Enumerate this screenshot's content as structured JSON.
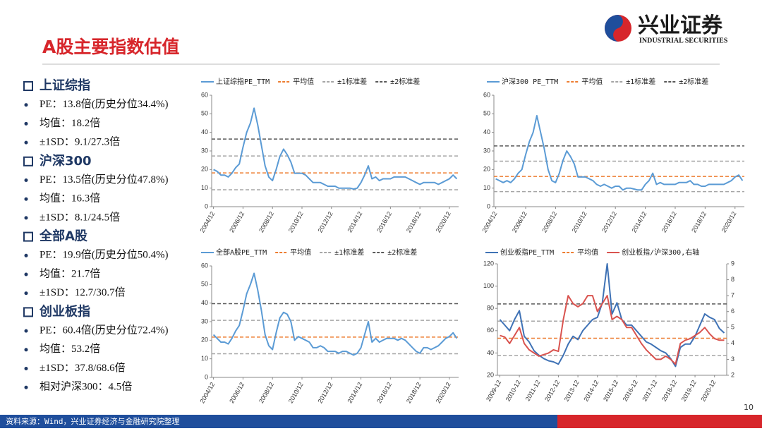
{
  "header": {
    "title": "A股主要指数估值",
    "logo": "兴业证券",
    "logo_sub": "INDUSTRIAL SECURITIES"
  },
  "sections": [
    {
      "title": "上证综指",
      "items": [
        "PE：13.8倍(历史分位34.4%)",
        "均值：18.2倍",
        "±1SD：9.1/27.3倍"
      ]
    },
    {
      "title": "沪深300",
      "items": [
        "PE：13.5倍(历史分位47.8%)",
        "均值：16.3倍",
        "±1SD：8.1/24.5倍"
      ]
    },
    {
      "title": "全部A股",
      "items": [
        "PE：19.9倍(历史分位50.4%)",
        "均值：21.7倍",
        "±1SD：12.7/30.7倍"
      ]
    },
    {
      "title": "创业板指",
      "items": [
        "PE：60.4倍(历史分位72.4%)",
        "均值：53.2倍",
        "±1SD：37.8/68.6倍",
        "相对沪深300：4.5倍"
      ]
    }
  ],
  "chart_data": [
    {
      "type": "line",
      "categories": [
        "2004/12",
        null,
        null,
        null,
        null,
        null,
        null,
        null,
        "2006/12",
        null,
        null,
        null,
        null,
        null,
        null,
        null,
        "2008/12",
        null,
        null,
        null,
        null,
        null,
        null,
        null,
        "2010/12",
        null,
        null,
        null,
        null,
        null,
        null,
        null,
        "2012/12",
        null,
        null,
        null,
        null,
        null,
        null,
        null,
        "2014/12",
        null,
        null,
        null,
        null,
        null,
        null,
        null,
        "2016/12",
        null,
        null,
        null,
        null,
        null,
        null,
        null,
        "2018/12",
        null,
        null,
        null,
        null,
        null,
        null,
        null,
        "2020/12",
        null,
        null
      ],
      "series": [
        {
          "name": "上证综指PE_TTM",
          "color": "#5b9bd5",
          "values": [
            20,
            19,
            17,
            17,
            16,
            18,
            21,
            23,
            32,
            40,
            45,
            53,
            44,
            33,
            22,
            16,
            14,
            20,
            27,
            31,
            28,
            24,
            18,
            18,
            18,
            17,
            15,
            13,
            13,
            13,
            12,
            11,
            11,
            11,
            10,
            10,
            10,
            10,
            9.5,
            10,
            13,
            17,
            22,
            15,
            16,
            14,
            15,
            15,
            15,
            16,
            16,
            16,
            16,
            15,
            14,
            13,
            12,
            13,
            13,
            13,
            13,
            12,
            13,
            14,
            15,
            17,
            15
          ]
        }
      ],
      "hlines": [
        {
          "name": "平均值",
          "color": "#ed7d31",
          "values": [
            18.2
          ]
        },
        {
          "name": "±1标准差",
          "color": "#a6a6a6",
          "values": [
            9.1,
            27.3
          ]
        },
        {
          "name": "±2标准差",
          "color": "#595959",
          "values": [
            36.4
          ]
        }
      ],
      "ylim": [
        0,
        60
      ],
      "yticks": [
        0,
        10,
        20,
        30,
        40,
        50,
        60
      ]
    },
    {
      "type": "line",
      "categories": [
        "2004/12",
        null,
        null,
        null,
        null,
        null,
        null,
        null,
        "2006/12",
        null,
        null,
        null,
        null,
        null,
        null,
        null,
        "2008/12",
        null,
        null,
        null,
        null,
        null,
        null,
        null,
        "2010/12",
        null,
        null,
        null,
        null,
        null,
        null,
        null,
        "2012/12",
        null,
        null,
        null,
        null,
        null,
        null,
        null,
        "2014/12",
        null,
        null,
        null,
        null,
        null,
        null,
        null,
        "2016/12",
        null,
        null,
        null,
        null,
        null,
        null,
        null,
        "2018/12",
        null,
        null,
        null,
        null,
        null,
        null,
        null,
        "2020/12",
        null,
        null
      ],
      "series": [
        {
          "name": "沪深300 PE_TTM",
          "color": "#5b9bd5",
          "values": [
            15,
            14,
            13,
            14,
            13,
            15,
            18,
            20,
            28,
            35,
            40,
            49,
            40,
            31,
            20,
            14,
            13,
            18,
            25,
            30,
            27,
            23,
            16,
            16,
            16,
            15,
            14,
            12,
            11,
            12,
            11,
            10,
            11,
            11,
            9,
            10,
            10,
            9.5,
            9,
            9,
            12,
            14,
            18,
            12,
            13,
            12,
            12,
            12,
            12,
            13,
            13,
            13,
            14,
            12,
            12,
            11,
            11,
            12,
            12,
            12,
            12,
            12,
            13,
            14,
            16,
            17,
            14
          ]
        }
      ],
      "hlines": [
        {
          "name": "平均值",
          "color": "#ed7d31",
          "values": [
            16.3
          ]
        },
        {
          "name": "±1标准差",
          "color": "#a6a6a6",
          "values": [
            8.1,
            24.5
          ]
        },
        {
          "name": "±2标准差",
          "color": "#595959",
          "values": [
            32.7
          ]
        }
      ],
      "ylim": [
        0,
        60
      ],
      "yticks": [
        0,
        10,
        20,
        30,
        40,
        50,
        60
      ]
    },
    {
      "type": "line",
      "categories": [
        "2004/12",
        null,
        null,
        null,
        null,
        null,
        null,
        null,
        "2006/12",
        null,
        null,
        null,
        null,
        null,
        null,
        null,
        "2008/12",
        null,
        null,
        null,
        null,
        null,
        null,
        null,
        "2010/12",
        null,
        null,
        null,
        null,
        null,
        null,
        null,
        "2012/12",
        null,
        null,
        null,
        null,
        null,
        null,
        null,
        "2014/12",
        null,
        null,
        null,
        null,
        null,
        null,
        null,
        "2016/12",
        null,
        null,
        null,
        null,
        null,
        null,
        null,
        "2018/12",
        null,
        null,
        null,
        null,
        null,
        null,
        null,
        "2020/12",
        null,
        null
      ],
      "series": [
        {
          "name": "全部A股PE_TTM",
          "color": "#5b9bd5",
          "values": [
            23,
            21,
            19,
            19,
            18,
            21,
            25,
            28,
            36,
            45,
            50,
            56,
            47,
            36,
            23,
            17,
            15,
            24,
            32,
            35,
            34,
            30,
            20,
            22,
            21,
            20,
            19,
            16,
            16,
            17,
            16,
            14,
            14,
            14,
            13,
            14,
            14,
            13,
            12,
            13,
            16,
            23,
            30,
            19,
            21,
            19,
            20,
            21,
            21,
            21,
            20,
            21,
            20,
            18,
            16,
            14,
            13,
            16,
            16,
            15,
            16,
            17,
            19,
            21,
            22,
            24,
            21
          ]
        }
      ],
      "hlines": [
        {
          "name": "平均值",
          "color": "#ed7d31",
          "values": [
            21.7
          ]
        },
        {
          "name": "±1标准差",
          "color": "#a6a6a6",
          "values": [
            12.7,
            30.7
          ]
        },
        {
          "name": "±2标准差",
          "color": "#595959",
          "values": [
            39.7
          ]
        }
      ],
      "ylim": [
        0,
        60
      ],
      "yticks": [
        0,
        10,
        20,
        30,
        40,
        50,
        60
      ]
    },
    {
      "type": "line",
      "categories": [
        "2009-12",
        null,
        null,
        null,
        "2010-12",
        null,
        null,
        null,
        "2011-12",
        null,
        null,
        null,
        "2012-12",
        null,
        null,
        null,
        "2013-12",
        null,
        null,
        null,
        "2014-12",
        null,
        null,
        null,
        "2015-12",
        null,
        null,
        null,
        "2016-12",
        null,
        null,
        null,
        "2017-12",
        null,
        null,
        null,
        "2018-12",
        null,
        null,
        null,
        "2019-12",
        null,
        null,
        null,
        "2020-12",
        null,
        null
      ],
      "series": [
        {
          "name": "创业板指PE_TTM",
          "color": "#3f72b5",
          "values": [
            70,
            65,
            60,
            70,
            78,
            55,
            50,
            42,
            38,
            35,
            33,
            32,
            30,
            38,
            48,
            55,
            52,
            60,
            65,
            70,
            72,
            85,
            120,
            75,
            85,
            70,
            65,
            65,
            60,
            55,
            50,
            48,
            45,
            42,
            40,
            35,
            28,
            45,
            48,
            48,
            55,
            65,
            75,
            72,
            70,
            62,
            58
          ]
        },
        {
          "name": "创业板指/沪深300,右轴",
          "color": "#d9534f",
          "axis": "y2",
          "values": [
            4.5,
            4.4,
            4.0,
            4.5,
            5.0,
            4.0,
            3.6,
            3.4,
            3.2,
            3.3,
            3.4,
            3.6,
            3.5,
            5.5,
            7.0,
            6.5,
            6.3,
            6.5,
            7.0,
            7.0,
            6.0,
            6.5,
            7.0,
            5.5,
            5.7,
            5.5,
            5.0,
            5.0,
            4.5,
            4.0,
            3.6,
            3.3,
            3.0,
            3.0,
            3.2,
            3.0,
            2.7,
            4.0,
            4.2,
            4.3,
            4.5,
            4.7,
            5.0,
            4.6,
            4.3,
            4.2,
            4.2
          ]
        }
      ],
      "hlines": [
        {
          "name": "平均值",
          "color": "#ed7d31",
          "values": [
            53.2
          ]
        },
        {
          "color": "#a6a6a6",
          "values": [
            37.8,
            68.6
          ]
        },
        {
          "color": "#595959",
          "values": [
            84
          ]
        }
      ],
      "ylim": [
        20,
        120
      ],
      "yticks": [
        20,
        40,
        60,
        80,
        100,
        120
      ],
      "y2lim": [
        2,
        9
      ],
      "y2ticks": [
        2,
        3,
        4,
        5,
        6,
        7,
        8,
        9
      ]
    }
  ],
  "footer": {
    "source": "资料来源：Wind，兴业证券经济与金融研究院整理",
    "page": "10"
  }
}
